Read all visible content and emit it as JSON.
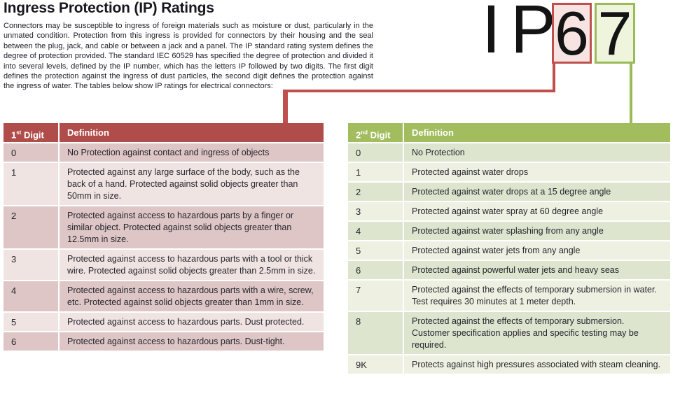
{
  "page": {
    "title": "Ingress Protection (IP) Ratings",
    "intro": "Connectors may be susceptible to ingress of foreign materials such as moisture or dust, particularly in the unmated condition. Protection from this ingress is provided for connectors by their housing and the seal between the plug, jack, and cable or between a jack and a panel. The IP standard rating system defines the degree of protection provided. The standard IEC 60529 has specified the degree of protection and divided it into several levels, defined by the IP number, which has the letters IP followed by two digits. The first digit defines the protection against the ingress of dust particles, the second digit defines the protection against the ingress of water. The tables below show IP ratings for electrical connectors:"
  },
  "ip_graphic": {
    "prefix": "IP",
    "first_digit": "6",
    "second_digit": "7"
  },
  "colors": {
    "red_accent": "#c0504d",
    "red_header": "#b04c49",
    "red_row_dark": "#ddc6c5",
    "red_row_light": "#f0e4e3",
    "red_box_fill": "#f7e3e2",
    "green_accent": "#9bbb59",
    "green_header": "#a1bd5d",
    "green_row_dark": "#dee5cf",
    "green_row_light": "#eef1e2",
    "green_box_fill": "#eff4dd",
    "text_dark": "#26262e"
  },
  "tables": {
    "first_digit": {
      "header": {
        "digit_number": "1",
        "digit_ordinal": "st",
        "digit_word": " Digit",
        "definition": "Definition"
      },
      "rows": [
        {
          "digit": "0",
          "definition": "No Protection against contact and ingress of objects"
        },
        {
          "digit": "1",
          "definition": "Protected against any large surface of the body, such as the back of a hand. Protected against solid objects greater than 50mm in size."
        },
        {
          "digit": "2",
          "definition": "Protected against access to hazardous parts by a finger or similar object. Protected against solid objects greater than 12.5mm in size."
        },
        {
          "digit": "3",
          "definition": "Protected against access to hazardous parts with a tool or thick wire. Protected against solid objects greater than 2.5mm in size."
        },
        {
          "digit": "4",
          "definition": "Protected against access to hazardous parts with a wire, screw, etc. Protected against solid objects greater than 1mm in size."
        },
        {
          "digit": "5",
          "definition": "Protected against access to hazardous parts. Dust protected."
        },
        {
          "digit": "6",
          "definition": "Protected against access to hazardous parts. Dust-tight."
        }
      ]
    },
    "second_digit": {
      "header": {
        "digit_number": "2",
        "digit_ordinal": "nd",
        "digit_word": " Digit",
        "definition": "Definition"
      },
      "rows": [
        {
          "digit": "0",
          "definition": "No Protection"
        },
        {
          "digit": "1",
          "definition": "Protected against water drops"
        },
        {
          "digit": "2",
          "definition": "Protected against water drops at a 15 degree angle"
        },
        {
          "digit": "3",
          "definition": "Protected against water spray at 60 degree angle"
        },
        {
          "digit": "4",
          "definition": "Protected against water splashing from any angle"
        },
        {
          "digit": "5",
          "definition": "Protected against water jets from any angle"
        },
        {
          "digit": "6",
          "definition": "Protected against powerful water jets and heavy seas"
        },
        {
          "digit": "7",
          "definition": "Protected against the effects of temporary submersion in water. Test requires 30 minutes at 1 meter depth."
        },
        {
          "digit": "8",
          "definition": "Protected against the effects of temporary submersion. Customer specification applies and specific testing may be required."
        },
        {
          "digit": "9K",
          "definition": "Protects against high pressures associated with steam cleaning."
        }
      ]
    }
  }
}
